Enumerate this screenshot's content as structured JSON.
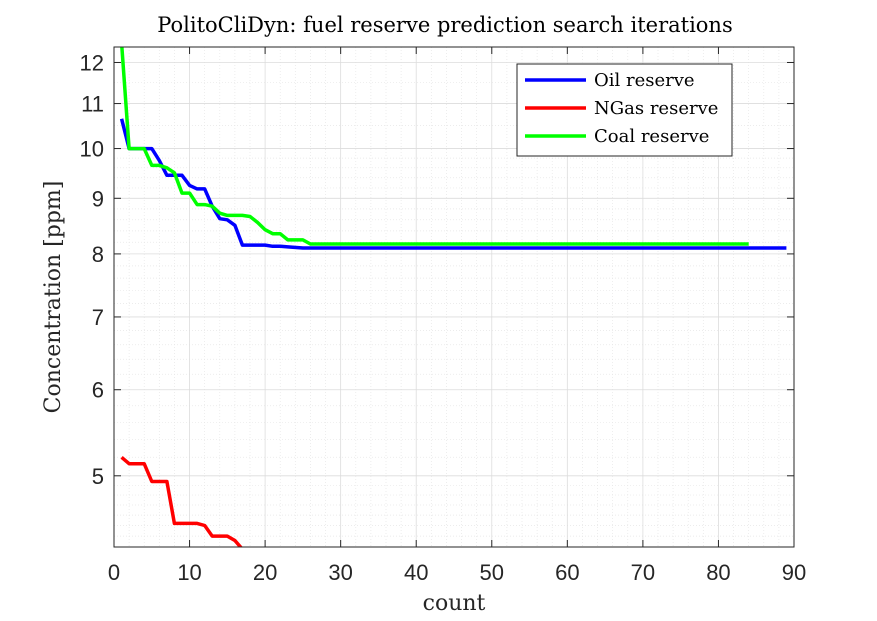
{
  "chart_data": {
    "type": "line",
    "title": "PolitoCliDyn: fuel reserve prediction search iterations",
    "xlabel": "count",
    "ylabel": "Concentration [ppm]",
    "xlim": [
      0,
      90
    ],
    "ylim": [
      4.3,
      12.4
    ],
    "yscale": "log",
    "xticks": [
      0,
      10,
      20,
      30,
      40,
      50,
      60,
      70,
      80,
      90
    ],
    "yticks": [
      5,
      6,
      7,
      8,
      9,
      10,
      11,
      12
    ],
    "grid": true,
    "minor_grid": true,
    "legend_position": "top-right",
    "series": [
      {
        "name": "Oil reserve",
        "color": "#0000ff",
        "x": [
          1,
          2,
          3,
          4,
          5,
          6,
          7,
          8,
          9,
          10,
          11,
          12,
          13,
          14,
          15,
          16,
          17,
          18,
          20,
          21,
          22,
          23,
          25,
          30,
          40,
          50,
          60,
          70,
          80,
          89
        ],
        "y": [
          10.65,
          10.0,
          10.0,
          10.0,
          10.0,
          9.75,
          9.45,
          9.45,
          9.45,
          9.25,
          9.18,
          9.18,
          8.85,
          8.62,
          8.6,
          8.5,
          8.15,
          8.15,
          8.15,
          8.13,
          8.13,
          8.12,
          8.1,
          8.1,
          8.1,
          8.1,
          8.1,
          8.1,
          8.1,
          8.1
        ]
      },
      {
        "name": "NGas reserve",
        "color": "#ff0000",
        "x": [
          1,
          2,
          3,
          4,
          5,
          6,
          7,
          8,
          9,
          10,
          11,
          12,
          13,
          14,
          15,
          16,
          17,
          18,
          20,
          22,
          25,
          30,
          40,
          50,
          60,
          70,
          80
        ],
        "y": [
          5.2,
          5.13,
          5.13,
          5.13,
          4.94,
          4.94,
          4.94,
          4.52,
          4.52,
          4.52,
          4.52,
          4.5,
          4.4,
          4.4,
          4.4,
          4.36,
          4.28,
          4.28,
          4.28,
          4.28,
          4.275,
          4.27,
          4.27,
          4.27,
          4.27,
          4.27,
          4.27
        ]
      },
      {
        "name": "Coal reserve",
        "color": "#00ff00",
        "x": [
          1,
          2,
          3,
          4,
          5,
          6,
          7,
          8,
          9,
          10,
          11,
          12,
          13,
          14,
          15,
          16,
          17,
          18,
          19,
          20,
          21,
          22,
          23,
          24,
          25,
          26,
          30,
          40,
          50,
          60,
          70,
          84
        ],
        "y": [
          12.5,
          10.0,
          10.0,
          10.0,
          9.65,
          9.65,
          9.6,
          9.5,
          9.1,
          9.1,
          8.88,
          8.88,
          8.85,
          8.72,
          8.68,
          8.68,
          8.68,
          8.66,
          8.55,
          8.42,
          8.35,
          8.35,
          8.24,
          8.24,
          8.24,
          8.17,
          8.17,
          8.17,
          8.17,
          8.17,
          8.17,
          8.17
        ]
      }
    ]
  }
}
